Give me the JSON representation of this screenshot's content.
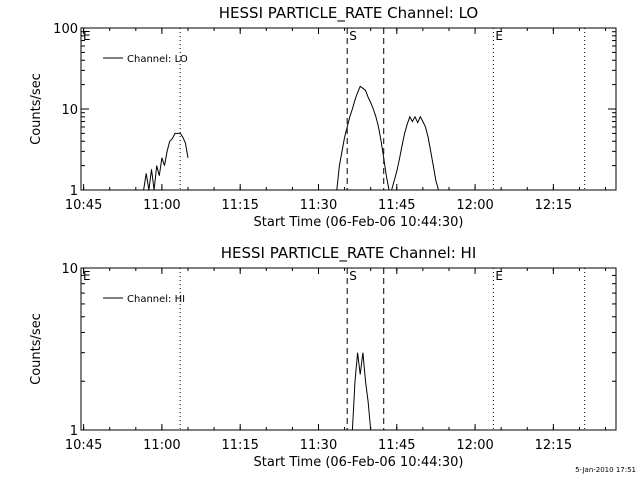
{
  "footer": "5-Jan-2010 17:51",
  "chart_data": [
    {
      "type": "line",
      "title": "HESSI PARTICLE_RATE Channel: LO",
      "xlabel": "Start Time (06-Feb-06 10:44:30)",
      "ylabel": "Counts/sec",
      "ylog": true,
      "xlim": [
        "10:44:30",
        "12:27:00"
      ],
      "ylim": [
        1,
        100
      ],
      "x_ticks": [
        "10:45",
        "11:00",
        "11:15",
        "11:30",
        "11:45",
        "12:00",
        "12:15"
      ],
      "y_ticks": [
        1,
        10,
        100
      ],
      "y_tick_labels": [
        "1",
        "10",
        "100"
      ],
      "legend": {
        "label": "Channel: LO",
        "position": "top-left"
      },
      "event_markers": [
        {
          "label": "E",
          "time": "10:44:30",
          "style": "none"
        },
        {
          "label": "",
          "time": "11:03:30",
          "style": "dotted"
        },
        {
          "label": "S",
          "time": "11:35:30",
          "style": "dashed"
        },
        {
          "label": "",
          "time": "11:42:30",
          "style": "dashed"
        },
        {
          "label": "E",
          "time": "12:03:30",
          "style": "dotted"
        },
        {
          "label": "",
          "time": "12:21:00",
          "style": "dotted"
        }
      ],
      "series": [
        {
          "segments": [
            {
              "x": [
                "10:56:30",
                "10:57:00",
                "10:57:30",
                "10:58:00",
                "10:58:30",
                "10:59:00",
                "10:59:30",
                "11:00:00",
                "11:00:30",
                "11:01:00",
                "11:01:30",
                "11:02:00",
                "11:02:30",
                "11:03:00",
                "11:03:30",
                "11:04:00",
                "11:04:30",
                "11:05:00"
              ],
              "y": [
                1,
                1.6,
                1,
                1.8,
                1,
                2,
                1.5,
                2.5,
                2,
                3,
                4,
                4.3,
                5,
                5,
                5,
                4.5,
                3.8,
                2.5
              ]
            },
            {
              "x": [
                "11:33:30",
                "11:34:00",
                "11:34:30",
                "11:35:00",
                "11:35:30",
                "11:36:00",
                "11:36:30",
                "11:37:00",
                "11:37:30",
                "11:38:00",
                "11:38:30",
                "11:39:00",
                "11:39:30",
                "11:40:00",
                "11:40:30",
                "11:41:00",
                "11:41:30",
                "11:42:00",
                "11:42:30",
                "11:43:00",
                "11:43:30"
              ],
              "y": [
                1,
                2,
                3,
                4.5,
                6,
                8,
                10,
                13,
                16,
                19,
                18,
                17,
                14,
                12,
                10,
                8,
                6,
                4,
                2.5,
                1.5,
                1
              ]
            },
            {
              "x": [
                "11:44:00",
                "11:44:30",
                "11:45:00",
                "11:45:30",
                "11:46:00",
                "11:46:30",
                "11:47:00",
                "11:47:30",
                "11:48:00",
                "11:48:30",
                "11:49:00",
                "11:49:30",
                "11:50:00",
                "11:50:30",
                "11:51:00",
                "11:51:30",
                "11:52:00",
                "11:52:30",
                "11:53:00"
              ],
              "y": [
                1,
                1.3,
                1.7,
                2.4,
                3.5,
                5,
                6.5,
                8,
                7,
                8,
                6.8,
                8,
                7,
                6,
                4.5,
                3,
                2,
                1.3,
                1
              ]
            }
          ]
        }
      ]
    },
    {
      "type": "line",
      "title": "HESSI PARTICLE_RATE Channel: HI",
      "xlabel": "Start Time (06-Feb-06 10:44:30)",
      "ylabel": "Counts/sec",
      "ylog": true,
      "xlim": [
        "10:44:30",
        "12:27:00"
      ],
      "ylim": [
        1,
        10
      ],
      "x_ticks": [
        "10:45",
        "11:00",
        "11:15",
        "11:30",
        "11:45",
        "12:00",
        "12:15"
      ],
      "y_ticks": [
        1,
        10
      ],
      "y_tick_labels": [
        "1",
        "10"
      ],
      "legend": {
        "label": "Channel: HI",
        "position": "top-left"
      },
      "event_markers": [
        {
          "label": "E",
          "time": "10:44:30",
          "style": "none"
        },
        {
          "label": "",
          "time": "11:03:30",
          "style": "dotted"
        },
        {
          "label": "S",
          "time": "11:35:30",
          "style": "dashed"
        },
        {
          "label": "",
          "time": "11:42:30",
          "style": "dashed"
        },
        {
          "label": "E",
          "time": "12:03:30",
          "style": "dotted"
        },
        {
          "label": "",
          "time": "12:21:00",
          "style": "dotted"
        }
      ],
      "series": [
        {
          "segments": [
            {
              "x": [
                "11:36:30",
                "11:37:00",
                "11:37:30",
                "11:38:00",
                "11:38:30",
                "11:39:00",
                "11:39:30",
                "11:40:00"
              ],
              "y": [
                1,
                2,
                3,
                2.2,
                3,
                2,
                1.5,
                1
              ]
            }
          ]
        }
      ]
    }
  ]
}
